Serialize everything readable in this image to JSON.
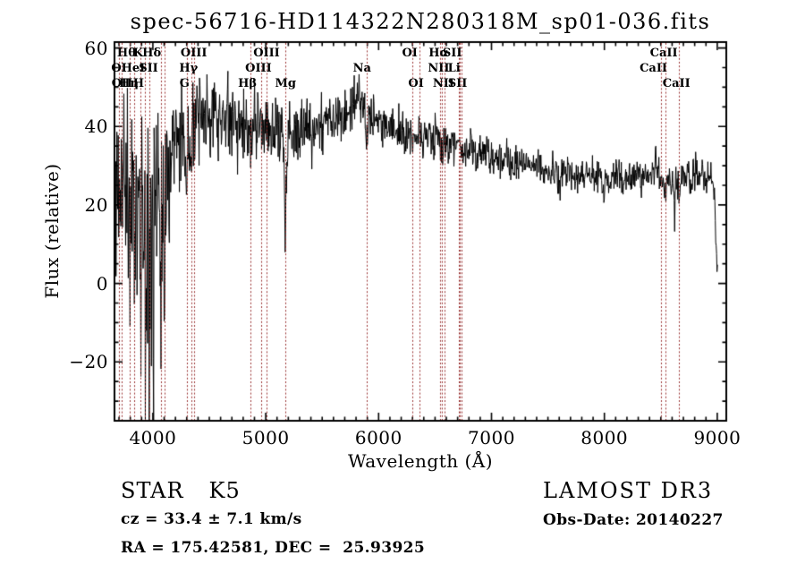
{
  "chart_data": {
    "type": "line",
    "title": "spec-56716-HD114322N280318M_sp01-036.fits",
    "xlabel": "Wavelength (Å)",
    "ylabel": "Flux (relative)",
    "xlim": [
      3660,
      9080
    ],
    "ylim": [
      -35,
      61.5
    ],
    "x_ticks": [
      4000,
      5000,
      6000,
      7000,
      8000,
      9000
    ],
    "x_minor_step": 100,
    "y_ticks": [
      -20,
      0,
      20,
      40,
      60
    ],
    "y_minor_step": 5,
    "grid": false,
    "legend": null,
    "line_color": "#000000",
    "spectral_line_color": "#983030",
    "data_wavelength_range": [
      3662,
      9002
    ],
    "samples": 1380,
    "noise_seed": 11,
    "spectral_lines": [
      {
        "label": "OI",
        "wavelength": 3700,
        "row": 2,
        "label_dx": 0
      },
      {
        "label": "OII",
        "wavelength": 3727,
        "row": 3,
        "label_dx": 0
      },
      {
        "label": "Hθ",
        "wavelength": 3798,
        "row": 1,
        "label_dx": -4
      },
      {
        "label": "Hη",
        "wavelength": 3835,
        "row": 3,
        "label_dx": -6
      },
      {
        "label": "HeI",
        "wavelength": 3889,
        "row": 2,
        "label_dx": -8
      },
      {
        "label": "K",
        "wavelength": 3933,
        "row": 1,
        "label_dx": -8
      },
      {
        "label": "H",
        "wavelength": 3968,
        "row": 3,
        "label_dx": -12
      },
      {
        "label": "SII",
        "wavelength": 4072,
        "row": 2,
        "label_dx": -14
      },
      {
        "label": "Hδ",
        "wavelength": 4101,
        "row": 1,
        "label_dx": -14
      },
      {
        "label": "G",
        "wavelength": 4304,
        "row": 3,
        "label_dx": -3
      },
      {
        "label": "Hγ",
        "wavelength": 4340,
        "row": 2,
        "label_dx": -3
      },
      {
        "label": "OIII",
        "wavelength": 4363,
        "row": 1,
        "label_dx": 0
      },
      {
        "label": "Hβ",
        "wavelength": 4861,
        "row": 3,
        "label_dx": -3
      },
      {
        "label": "OIII",
        "wavelength": 4959,
        "row": 2,
        "label_dx": -3
      },
      {
        "label": "OIII",
        "wavelength": 5007,
        "row": 1,
        "label_dx": 0
      },
      {
        "label": "Mg",
        "wavelength": 5175,
        "row": 3,
        "label_dx": 0
      },
      {
        "label": "Na",
        "wavelength": 5893,
        "row": 2,
        "label_dx": -5
      },
      {
        "label": "OI",
        "wavelength": 6300,
        "row": 1,
        "label_dx": -3
      },
      {
        "label": "OI",
        "wavelength": 6363,
        "row": 3,
        "label_dx": -4
      },
      {
        "label": "NII",
        "wavelength": 6548,
        "row": 2,
        "label_dx": -2
      },
      {
        "label": "Hα",
        "wavelength": 6563,
        "row": 1,
        "label_dx": -4
      },
      {
        "label": "NII",
        "wavelength": 6583,
        "row": 3,
        "label_dx": -1
      },
      {
        "label": "Li",
        "wavelength": 6708,
        "row": 2,
        "label_dx": -5
      },
      {
        "label": "SII",
        "wavelength": 6716,
        "row": 1,
        "label_dx": -8
      },
      {
        "label": "SII",
        "wavelength": 6731,
        "row": 3,
        "label_dx": -4
      },
      {
        "label": "CaII",
        "wavelength": 8498,
        "row": 2,
        "label_dx": -8
      },
      {
        "label": "CaII",
        "wavelength": 8542,
        "row": 1,
        "label_dx": -2
      },
      {
        "label": "CaII",
        "wavelength": 8662,
        "row": 3,
        "label_dx": -3
      }
    ],
    "continuum_format": "[wavelength, flux]",
    "continuum": [
      [
        3662,
        22
      ],
      [
        3700,
        24
      ],
      [
        3740,
        26
      ],
      [
        3780,
        23
      ],
      [
        3820,
        24
      ],
      [
        3860,
        21
      ],
      [
        3900,
        20
      ],
      [
        3940,
        21
      ],
      [
        3980,
        17
      ],
      [
        4020,
        24
      ],
      [
        4060,
        27
      ],
      [
        4100,
        24
      ],
      [
        4140,
        31
      ],
      [
        4180,
        35
      ],
      [
        4240,
        36.5
      ],
      [
        4300,
        37
      ],
      [
        4360,
        39
      ],
      [
        4420,
        41.5
      ],
      [
        4500,
        43
      ],
      [
        4580,
        42.5
      ],
      [
        4660,
        41.5
      ],
      [
        4750,
        40.5
      ],
      [
        4850,
        40
      ],
      [
        4950,
        40
      ],
      [
        5050,
        39.5
      ],
      [
        5150,
        39
      ],
      [
        5250,
        38.5
      ],
      [
        5350,
        39
      ],
      [
        5450,
        40
      ],
      [
        5550,
        41
      ],
      [
        5650,
        42.5
      ],
      [
        5750,
        44.5
      ],
      [
        5840,
        46
      ],
      [
        5900,
        43.5
      ],
      [
        5960,
        41.5
      ],
      [
        6050,
        40.5
      ],
      [
        6150,
        39.5
      ],
      [
        6250,
        38.5
      ],
      [
        6350,
        38
      ],
      [
        6450,
        37
      ],
      [
        6550,
        36.5
      ],
      [
        6650,
        35.5
      ],
      [
        6750,
        34.5
      ],
      [
        6850,
        34
      ],
      [
        6950,
        33
      ],
      [
        7050,
        32
      ],
      [
        7150,
        31.2
      ],
      [
        7250,
        30.5
      ],
      [
        7350,
        30
      ],
      [
        7450,
        29.3
      ],
      [
        7550,
        28.8
      ],
      [
        7650,
        28.3
      ],
      [
        7750,
        27.8
      ],
      [
        7850,
        27.4
      ],
      [
        7950,
        27
      ],
      [
        8050,
        26.8
      ],
      [
        8150,
        26.8
      ],
      [
        8250,
        27
      ],
      [
        8350,
        27.3
      ],
      [
        8430,
        27.8
      ],
      [
        8520,
        26.8
      ],
      [
        8610,
        26.8
      ],
      [
        8700,
        27
      ],
      [
        8800,
        27.5
      ],
      [
        8900,
        27.3
      ],
      [
        8955,
        27
      ],
      [
        8975,
        24
      ],
      [
        8990,
        10
      ],
      [
        9002,
        4
      ]
    ],
    "noise_amplitude_format": "[wavelength, one_sigma_flux]",
    "noise_amplitude": [
      [
        3662,
        12
      ],
      [
        3750,
        13
      ],
      [
        3850,
        14
      ],
      [
        3950,
        15
      ],
      [
        4050,
        14
      ],
      [
        4120,
        10
      ],
      [
        4200,
        7
      ],
      [
        4300,
        6
      ],
      [
        4400,
        5.5
      ],
      [
        4600,
        5
      ],
      [
        4900,
        4.5
      ],
      [
        5200,
        4
      ],
      [
        5500,
        3.5
      ],
      [
        5800,
        3.2
      ],
      [
        6100,
        3
      ],
      [
        6400,
        2.8
      ],
      [
        6700,
        2.6
      ],
      [
        7000,
        2.4
      ],
      [
        7400,
        2.2
      ],
      [
        7800,
        2.1
      ],
      [
        8200,
        2.1
      ],
      [
        8600,
        2.3
      ],
      [
        8900,
        2.4
      ],
      [
        9002,
        1.5
      ]
    ],
    "absorption_features_format": "[wavelength, depth, sigma]",
    "absorption_features": [
      [
        3798,
        14,
        4
      ],
      [
        3835,
        12,
        4
      ],
      [
        3889,
        38,
        2.5
      ],
      [
        3933,
        30,
        2.5
      ],
      [
        3968,
        44,
        2.5
      ],
      [
        4005,
        40,
        2
      ],
      [
        4072,
        30,
        2.5
      ],
      [
        4101,
        35,
        3
      ],
      [
        4144,
        10,
        3
      ],
      [
        4304,
        6,
        12
      ],
      [
        4340,
        8,
        5
      ],
      [
        4861,
        6,
        8
      ],
      [
        5175,
        21,
        11
      ],
      [
        5893,
        8,
        9
      ],
      [
        6300,
        3,
        5
      ],
      [
        6563,
        5,
        7
      ],
      [
        6867,
        5,
        9
      ],
      [
        7186,
        3,
        12
      ],
      [
        7605,
        5,
        11
      ],
      [
        7990,
        5,
        9
      ],
      [
        8168,
        4,
        7
      ],
      [
        8498,
        4,
        5
      ],
      [
        8542,
        7,
        7
      ],
      [
        8622,
        10,
        4
      ],
      [
        8662,
        6,
        5
      ],
      [
        8760,
        4,
        6
      ]
    ],
    "emission_features_format": "[wavelength, height, sigma]",
    "emission_features": [
      [
        5848,
        7,
        3
      ],
      [
        8455,
        11,
        4
      ]
    ],
    "blue_spikes": {
      "lambda_max": 4160,
      "probability": 0.055,
      "min_depth": 6,
      "max_depth": 30
    }
  },
  "footer": {
    "object_class": "STAR",
    "subclass": "K5",
    "survey": "LAMOST DR3",
    "cz": "cz = 33.4 ± 7.1 km/s",
    "obs_date": "Obs-Date: 20140227",
    "coords": "RA = 175.42581, DEC =  25.93925"
  }
}
